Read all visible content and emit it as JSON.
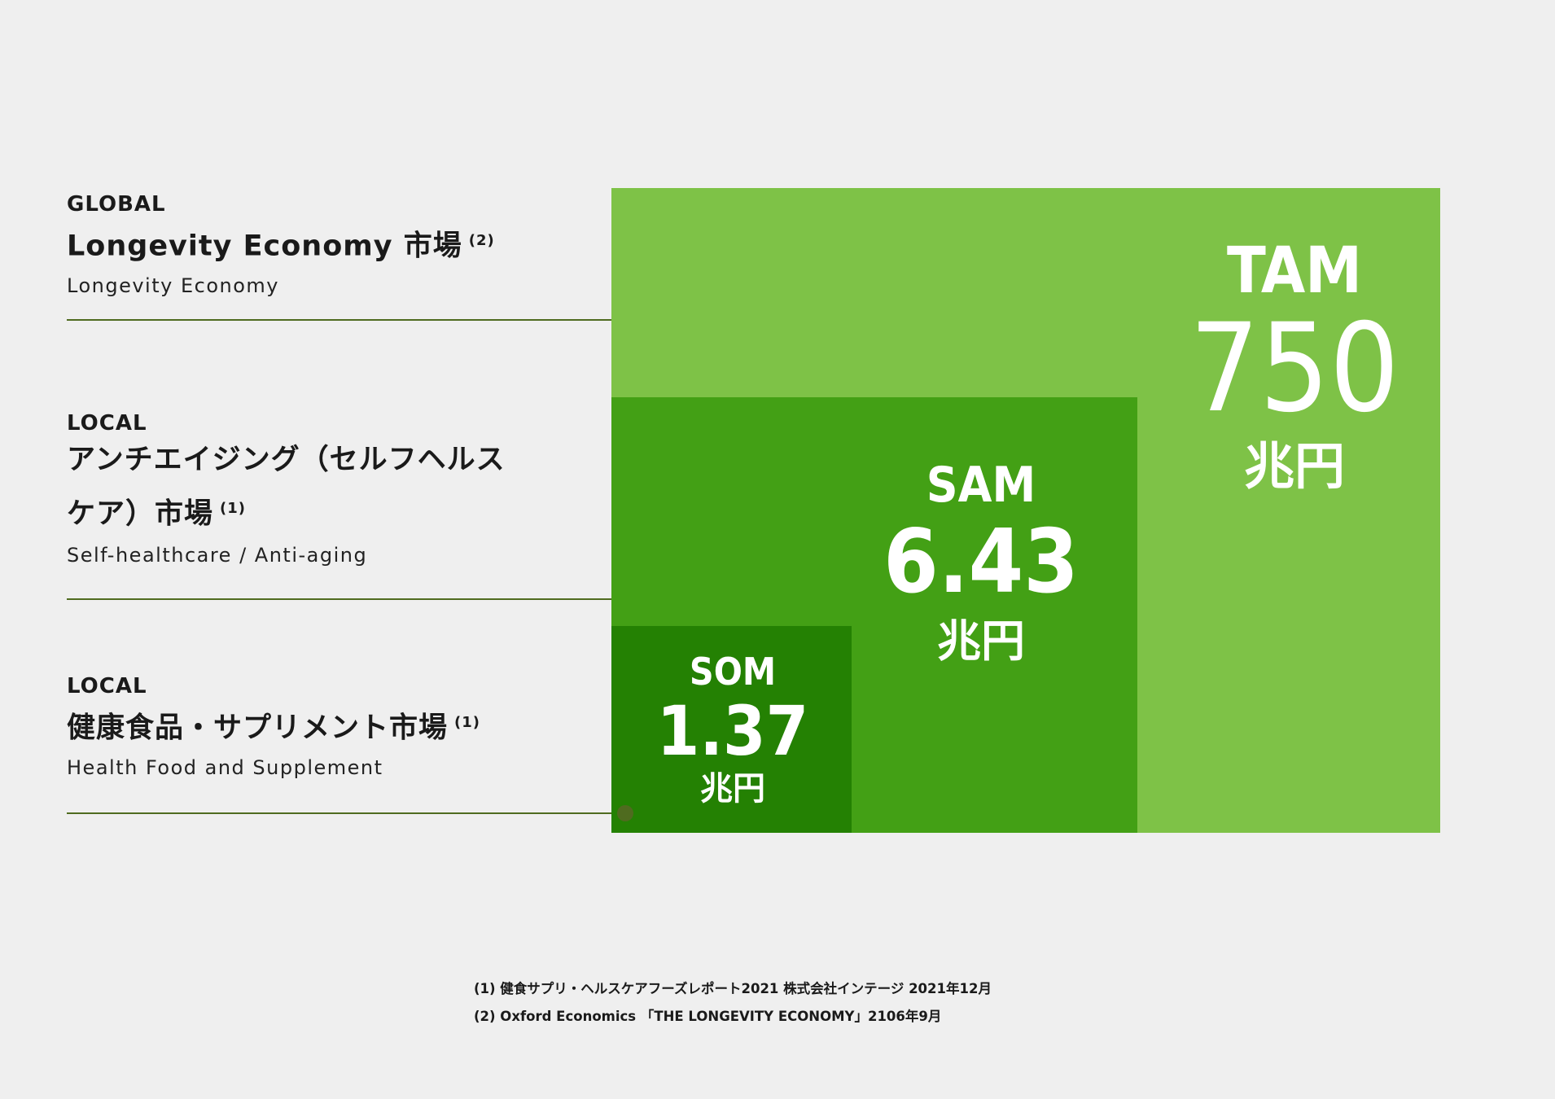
{
  "markets": [
    {
      "scope": "GLOBAL",
      "title": "Longevity Economy 市場",
      "note": "(2)",
      "subtitle": "Longevity Economy"
    },
    {
      "scope": "LOCAL",
      "title_line1": "アンチエイジング（セルフヘルス",
      "title_line2": "ケア）市場",
      "note": "(1)",
      "subtitle": "Self-healthcare / Anti-aging"
    },
    {
      "scope": "LOCAL",
      "title": "健康食品・サプリメント市場",
      "note": "(1)",
      "subtitle": "Health Food and Supplement"
    }
  ],
  "boxes": {
    "tam": {
      "label": "TAM",
      "value": "750",
      "unit": "兆円",
      "color": "#7ec247"
    },
    "sam": {
      "label": "SAM",
      "value": "6.43",
      "unit": "兆円",
      "color": "#43a015"
    },
    "som": {
      "label": "SOM",
      "value": "1.37",
      "unit": "兆円",
      "color": "#248103"
    }
  },
  "footnotes": [
    "(1) 健食サプリ・ヘルスケアフーズレポート2021 株式会社インテージ 2021年12月",
    "(2) Oxford Economics 「THE LONGEVITY ECONOMY」2106年9月"
  ],
  "colors": {
    "leader": "#4f6b1f",
    "background": "#efefef"
  }
}
